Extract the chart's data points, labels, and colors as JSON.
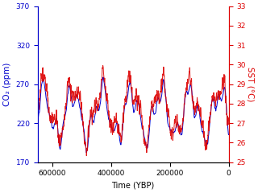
{
  "xlabel": "Time (YBP)",
  "ylabel_left": "CO₂ (ppm)",
  "ylabel_right": "SST (°C)",
  "co2_color": "#0000cc",
  "sst_color": "#dd0000",
  "xlim": [
    650000,
    0
  ],
  "ylim_left": [
    170,
    370
  ],
  "ylim_right": [
    25,
    33
  ],
  "yticks_left": [
    170,
    220,
    270,
    320,
    370
  ],
  "yticks_right": [
    25,
    26,
    27,
    28,
    29,
    30,
    31,
    32,
    33
  ],
  "xticks": [
    600000,
    400000,
    200000,
    0
  ],
  "bg_color": "#ffffff",
  "left_label_color": "#0000cc",
  "right_label_color": "#dd0000",
  "tick_color_left": "#0000cc",
  "tick_color_right": "#dd0000",
  "linewidth": 0.7
}
